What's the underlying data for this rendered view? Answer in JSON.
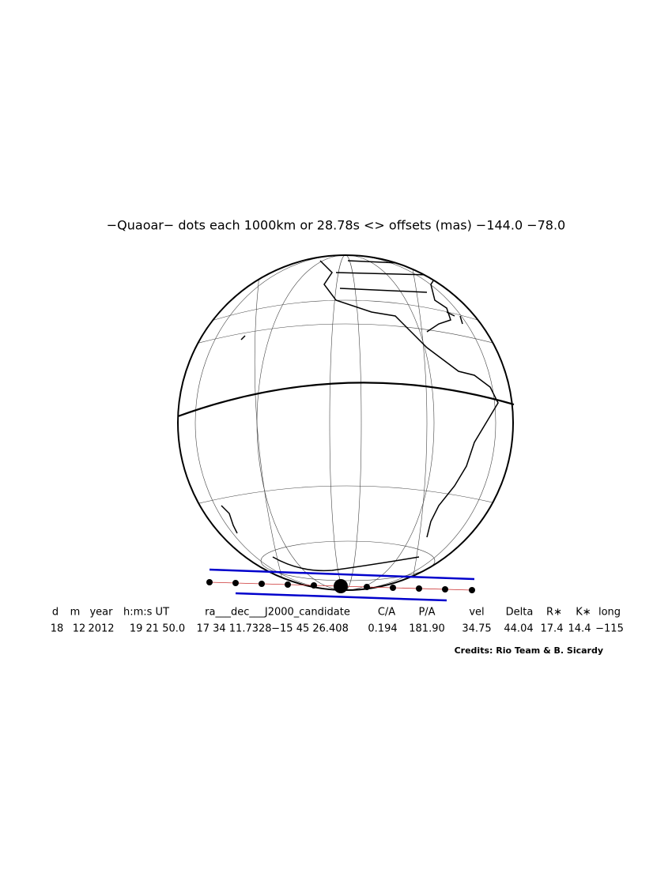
{
  "title": "−Quaoar− dots each 1000km or 28.78s <> offsets (mas) −144.0  −78.0",
  "table": {
    "header": [
      "d",
      "m",
      "year",
      "h:m:s UT",
      "ra___dec___J2000_candidate",
      "C/A",
      "P/A",
      "vel",
      "Delta",
      "R∗",
      "K∗",
      "long"
    ],
    "row": [
      "18",
      "12",
      "2012",
      "19 21 50.0",
      "17 34 11.7328",
      "−15 45 26.408",
      "0.194",
      "181.90",
      "34.75",
      "44.04",
      "17.4",
      "14.4",
      "−115"
    ]
  },
  "credits": "Credits: Rio Team & B. Sicardy"
}
